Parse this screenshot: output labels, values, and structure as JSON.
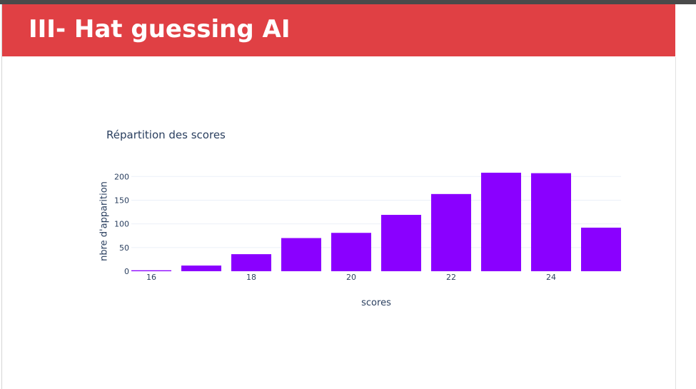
{
  "slide": {
    "title": "III- Hat guessing AI",
    "header_color": "#e04044"
  },
  "chart_data": {
    "type": "bar",
    "title": "Répartition des scores",
    "xlabel": "scores",
    "ylabel": "nbre d'apparition",
    "x": [
      16,
      17,
      18,
      19,
      20,
      21,
      22,
      23,
      24,
      25
    ],
    "values": [
      2,
      12,
      36,
      70,
      81,
      119,
      163,
      208,
      207,
      92
    ],
    "bar_color": "#8a00ff",
    "xticks": [
      16,
      18,
      20,
      22,
      24
    ],
    "yticks": [
      0,
      50,
      100,
      150,
      200
    ],
    "xlim": [
      15.6,
      25.4
    ],
    "ylim": [
      0,
      220
    ],
    "grid": true
  }
}
